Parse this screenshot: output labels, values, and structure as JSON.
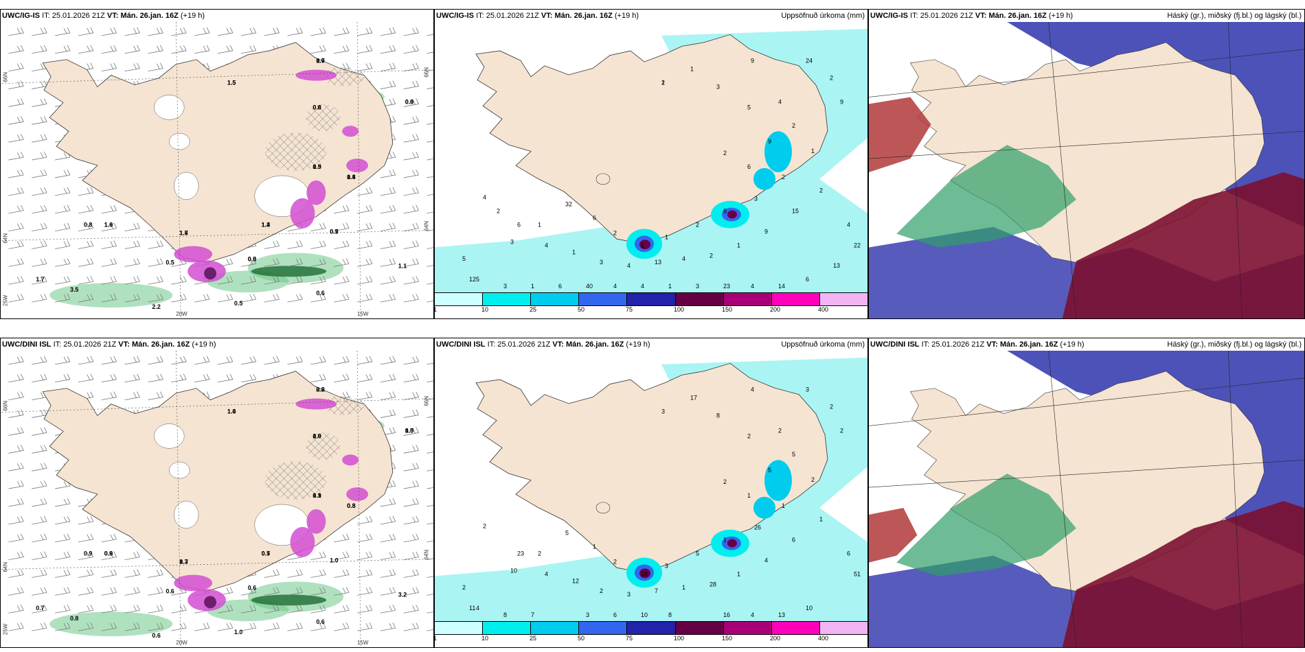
{
  "panels": [
    {
      "model": "UWC/IG-IS",
      "it_prefix": "IT:",
      "it": "25.01.2026 21Z",
      "vt_prefix": "VT:",
      "vt": "Mán. 26.jan. 16Z",
      "lead": "(+19 h)",
      "title": "",
      "type": "wind",
      "axis_labels": [
        "66N",
        "64N",
        "25W",
        "20W",
        "15W",
        "66N",
        "64N"
      ],
      "values": [
        "1.5",
        "0.8",
        "1.4",
        "1.4",
        "1.6",
        "1.0",
        "1.5",
        "1.0",
        "0.9",
        "0.5",
        "0.6",
        "0.5",
        "0.8",
        "1.7",
        "1.1",
        "0.6",
        "0.5",
        "2.2",
        "3.5",
        "1.5",
        "0.6",
        "0.8",
        "1.3",
        "1.7",
        "1.6",
        "0.9",
        "0.7",
        "0.6",
        "0.7",
        "0.8"
      ]
    },
    {
      "model": "UWC/IG-IS",
      "it_prefix": "IT:",
      "it": "25.01.2026 21Z",
      "vt_prefix": "VT:",
      "vt": "Mán. 26.jan. 16Z",
      "lead": "(+19 h)",
      "title": "Uppsöfnuð úrkoma (mm)",
      "type": "precip",
      "values": [
        "1",
        "1",
        "1",
        "1",
        "4",
        "2",
        "4",
        "4",
        "4",
        "4",
        "4",
        "5",
        "5",
        "6",
        "6",
        "6",
        "2",
        "1",
        "3",
        "4",
        "6",
        "1",
        "1",
        "1",
        "2",
        "1",
        "3",
        "9",
        "15",
        "13",
        "6",
        "22",
        "23",
        "40",
        "5",
        "2",
        "2",
        "32",
        "9",
        "9",
        "2",
        "1",
        "12",
        "14",
        "4",
        "3",
        "3",
        "3",
        "2",
        "2",
        "24",
        "9",
        "4",
        "2",
        "13",
        "3",
        "6",
        "2"
      ]
    },
    {
      "model": "UWC/IG-IS",
      "it_prefix": "IT:",
      "it": "25.01.2026 21Z",
      "vt_prefix": "VT:",
      "vt": "Mán. 26.jan. 16Z",
      "lead": "(+19 h)",
      "title": "Háský (gr.), miðský (fj.bl.) og lágský (bl.)",
      "type": "cloud"
    },
    {
      "model": "UWC/DINI ISL",
      "it_prefix": "IT:",
      "it": "25.01.2026 21Z",
      "vt_prefix": "VT:",
      "vt": "Mán. 26.jan. 16Z",
      "lead": "(+19 h)",
      "title": "",
      "type": "wind",
      "axis_labels": [
        "66N",
        "64N",
        "25W",
        "20W",
        "15W",
        "66N",
        "64N"
      ],
      "values": [
        "1.0",
        "0.9",
        "0.8",
        "0.7",
        "0.7",
        "0.6",
        "1.1",
        "2.2",
        "1.0",
        "1.0",
        "0.6",
        "0.6",
        "0.9",
        "0.7",
        "3.2",
        "0.6",
        "1.0",
        "0.6",
        "0.8",
        "1.4",
        "1.0",
        "0.8",
        "0.5",
        "1.3",
        "0.9",
        "0.9",
        "0.6",
        "0.5"
      ]
    },
    {
      "model": "UWC/DINI ISL",
      "it_prefix": "IT:",
      "it": "25.01.2026 21Z",
      "vt_prefix": "VT:",
      "vt": "Mán. 26.jan. 16Z",
      "lead": "(+19 h)",
      "title": "Uppsöfnuð úrkoma (mm)",
      "type": "precip",
      "values": [
        "3",
        "2",
        "3",
        "2",
        "2",
        "1",
        "1",
        "4",
        "6",
        "4",
        "6",
        "4",
        "2",
        "1",
        "1",
        "1",
        "2",
        "1",
        "2",
        "2",
        "10",
        "8",
        "7",
        "17",
        "1",
        "16",
        "10",
        "4",
        "6",
        "7",
        "23",
        "51",
        "16",
        "3",
        "2",
        "5",
        "5",
        "5",
        "5",
        "2",
        "28",
        "12",
        "11",
        "13",
        "10",
        "8",
        "8",
        "26",
        "2",
        "2",
        "3",
        "4",
        "3"
      ]
    },
    {
      "model": "UWC/DINI ISL",
      "it_prefix": "IT:",
      "it": "25.01.2026 21Z",
      "vt_prefix": "VT:",
      "vt": "Mán. 26.jan. 16Z",
      "lead": "(+19 h)",
      "title": "Háský (gr.), miðský (fj.bl.) og lágský (bl.)",
      "type": "cloud"
    }
  ],
  "legend": {
    "ticks": [
      "1",
      "10",
      "25",
      "50",
      "75",
      "100",
      "150",
      "200",
      "400"
    ],
    "colors": [
      "#ccffff",
      "#00eeee",
      "#00ccee",
      "#3366ee",
      "#2222aa",
      "#660044",
      "#aa0077",
      "#ff00bb",
      "#f2b3f2"
    ]
  },
  "colors": {
    "land": "#f5e4d2",
    "sea_precip": "#aaf4f4",
    "cloud_high": "#2f9f6a",
    "cloud_mid": "#3a3fb0",
    "cloud_low": "#7c1030",
    "hatch": "#888888",
    "wind_shade": "#6fc88a",
    "purple": "#d24fd2"
  }
}
